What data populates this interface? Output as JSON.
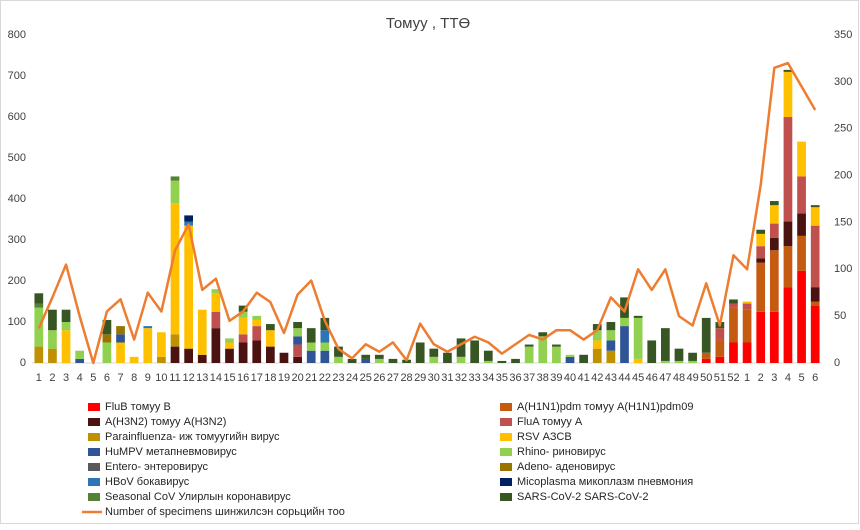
{
  "chart_data": {
    "type": "bar",
    "title": "Томуу , ТТӨ",
    "categories": [
      "1",
      "2",
      "3",
      "4",
      "5",
      "6",
      "7",
      "8",
      "9",
      "10",
      "11",
      "12",
      "13",
      "14",
      "15",
      "16",
      "17",
      "18",
      "19",
      "20",
      "21",
      "22",
      "23",
      "24",
      "25",
      "26",
      "27",
      "28",
      "29",
      "30",
      "31",
      "32",
      "33",
      "34",
      "35",
      "36",
      "37",
      "38",
      "39",
      "40",
      "41",
      "42",
      "43",
      "44",
      "45",
      "46",
      "47",
      "48",
      "49",
      "50",
      "51",
      "52",
      "1",
      "2",
      "3",
      "4",
      "5",
      "6"
    ],
    "ylim": [
      0,
      800
    ],
    "yticks": [
      0,
      100,
      200,
      300,
      400,
      500,
      600,
      700,
      800
    ],
    "y2lim": [
      0,
      350
    ],
    "y2ticks": [
      0,
      50,
      100,
      150,
      200,
      250,
      300,
      350
    ],
    "stacked": true,
    "legend": "bottom",
    "series": [
      {
        "name": "FluB томуу B",
        "color": "#ff0000",
        "values": [
          0,
          0,
          0,
          0,
          0,
          0,
          0,
          0,
          0,
          0,
          0,
          0,
          0,
          0,
          0,
          0,
          0,
          0,
          0,
          0,
          0,
          0,
          0,
          0,
          0,
          0,
          0,
          0,
          0,
          0,
          0,
          0,
          0,
          0,
          0,
          0,
          0,
          0,
          0,
          0,
          0,
          0,
          0,
          0,
          0,
          0,
          0,
          0,
          0,
          10,
          15,
          50,
          50,
          125,
          125,
          185,
          225,
          140
        ]
      },
      {
        "name": "A(H1N1)pdm томуу A(H1N1)pdm09",
        "color": "#c55a11",
        "values": [
          0,
          0,
          0,
          0,
          0,
          0,
          0,
          0,
          0,
          0,
          0,
          0,
          0,
          0,
          0,
          0,
          0,
          0,
          0,
          0,
          0,
          0,
          0,
          0,
          0,
          0,
          0,
          0,
          0,
          0,
          0,
          0,
          0,
          0,
          0,
          0,
          0,
          0,
          0,
          0,
          0,
          0,
          0,
          0,
          0,
          0,
          0,
          0,
          0,
          15,
          40,
          85,
          80,
          120,
          150,
          100,
          85,
          10
        ]
      },
      {
        "name": "A(H3N2) томуу A(H3N2)",
        "color": "#4b1212",
        "values": [
          0,
          0,
          0,
          0,
          0,
          0,
          0,
          0,
          0,
          0,
          40,
          35,
          20,
          85,
          35,
          50,
          55,
          40,
          25,
          15,
          0,
          0,
          0,
          0,
          0,
          0,
          0,
          0,
          0,
          0,
          0,
          0,
          0,
          0,
          0,
          0,
          0,
          0,
          0,
          0,
          0,
          0,
          0,
          0,
          0,
          0,
          0,
          0,
          0,
          0,
          0,
          0,
          0,
          10,
          30,
          60,
          55,
          35
        ]
      },
      {
        "name": "FluA томуу A",
        "color": "#c0504d",
        "values": [
          0,
          0,
          0,
          0,
          0,
          0,
          0,
          0,
          0,
          0,
          0,
          0,
          0,
          40,
          0,
          20,
          35,
          0,
          0,
          30,
          0,
          0,
          0,
          0,
          0,
          0,
          0,
          0,
          0,
          0,
          0,
          0,
          0,
          0,
          0,
          0,
          0,
          0,
          0,
          0,
          0,
          0,
          0,
          0,
          0,
          0,
          0,
          0,
          0,
          0,
          30,
          10,
          15,
          30,
          35,
          255,
          90,
          150
        ]
      },
      {
        "name": "Parainfluenza- иж томуугийн  вирус",
        "color": "#bf9000",
        "values": [
          40,
          35,
          0,
          0,
          0,
          0,
          0,
          0,
          0,
          15,
          30,
          0,
          0,
          0,
          0,
          0,
          0,
          0,
          0,
          0,
          0,
          0,
          0,
          0,
          0,
          0,
          0,
          0,
          0,
          0,
          0,
          0,
          0,
          0,
          0,
          0,
          0,
          0,
          0,
          0,
          0,
          35,
          30,
          0,
          0,
          0,
          0,
          0,
          0,
          0,
          0,
          0,
          0,
          0,
          0,
          0,
          0,
          0
        ]
      },
      {
        "name": "RSV АЗСВ",
        "color": "#ffc000",
        "values": [
          0,
          0,
          80,
          0,
          0,
          0,
          50,
          15,
          85,
          60,
          320,
          300,
          110,
          45,
          15,
          40,
          15,
          40,
          0,
          0,
          0,
          0,
          0,
          0,
          0,
          0,
          0,
          0,
          0,
          0,
          0,
          0,
          0,
          0,
          0,
          0,
          0,
          0,
          0,
          0,
          0,
          20,
          0,
          0,
          10,
          0,
          0,
          0,
          0,
          0,
          0,
          0,
          5,
          30,
          45,
          110,
          85,
          45
        ]
      },
      {
        "name": "HuMPV метапневмовирус",
        "color": "#2f5597",
        "values": [
          0,
          0,
          0,
          10,
          0,
          0,
          20,
          0,
          0,
          0,
          0,
          0,
          0,
          0,
          0,
          0,
          0,
          0,
          0,
          20,
          30,
          30,
          0,
          0,
          10,
          0,
          0,
          0,
          0,
          0,
          0,
          0,
          0,
          0,
          0,
          0,
          0,
          0,
          0,
          15,
          0,
          0,
          25,
          90,
          0,
          0,
          0,
          0,
          0,
          0,
          0,
          0,
          0,
          0,
          0,
          0,
          0,
          0
        ]
      },
      {
        "name": "Rhino- риновирус",
        "color": "#92d050",
        "values": [
          95,
          45,
          20,
          20,
          0,
          50,
          0,
          0,
          0,
          0,
          55,
          0,
          0,
          10,
          10,
          15,
          10,
          0,
          0,
          20,
          20,
          20,
          15,
          0,
          0,
          10,
          0,
          0,
          0,
          15,
          0,
          15,
          0,
          5,
          0,
          0,
          40,
          65,
          40,
          5,
          0,
          25,
          25,
          20,
          100,
          0,
          5,
          5,
          5,
          0,
          0,
          0,
          0,
          0,
          0,
          0,
          0,
          0
        ]
      },
      {
        "name": "Entero- энтеровирус",
        "color": "#595959",
        "values": [
          0,
          0,
          0,
          0,
          0,
          0,
          0,
          0,
          0,
          0,
          0,
          0,
          0,
          0,
          0,
          0,
          0,
          0,
          0,
          0,
          0,
          0,
          0,
          0,
          0,
          0,
          0,
          0,
          0,
          0,
          0,
          0,
          0,
          0,
          0,
          0,
          0,
          0,
          0,
          0,
          0,
          0,
          0,
          0,
          0,
          0,
          0,
          0,
          0,
          0,
          0,
          0,
          0,
          0,
          0,
          0,
          0,
          0
        ]
      },
      {
        "name": "Adeno- аденовирус",
        "color": "#997300",
        "values": [
          0,
          0,
          0,
          0,
          0,
          20,
          20,
          0,
          0,
          0,
          0,
          0,
          0,
          0,
          0,
          0,
          0,
          0,
          0,
          0,
          0,
          0,
          0,
          0,
          0,
          0,
          0,
          0,
          0,
          0,
          0,
          0,
          0,
          0,
          0,
          0,
          0,
          0,
          0,
          0,
          0,
          0,
          0,
          0,
          0,
          0,
          0,
          0,
          0,
          0,
          0,
          0,
          0,
          0,
          0,
          0,
          0,
          0
        ]
      },
      {
        "name": "HBoV бокавирус",
        "color": "#2e75b6",
        "values": [
          0,
          0,
          0,
          0,
          0,
          0,
          0,
          0,
          5,
          0,
          0,
          10,
          0,
          0,
          0,
          0,
          0,
          0,
          0,
          0,
          0,
          30,
          0,
          0,
          0,
          0,
          0,
          0,
          0,
          0,
          0,
          0,
          0,
          0,
          0,
          0,
          0,
          0,
          0,
          0,
          0,
          0,
          0,
          0,
          0,
          0,
          0,
          0,
          0,
          0,
          0,
          0,
          0,
          0,
          0,
          0,
          0,
          0
        ]
      },
      {
        "name": "Micoplasma микоплазм пневмония",
        "color": "#002060",
        "values": [
          0,
          0,
          0,
          0,
          0,
          0,
          0,
          0,
          0,
          0,
          0,
          15,
          0,
          0,
          0,
          0,
          0,
          0,
          0,
          0,
          0,
          0,
          0,
          0,
          0,
          0,
          0,
          0,
          0,
          0,
          0,
          0,
          0,
          0,
          0,
          0,
          0,
          0,
          0,
          0,
          0,
          0,
          0,
          0,
          0,
          0,
          0,
          0,
          0,
          0,
          0,
          0,
          0,
          0,
          0,
          0,
          0,
          0
        ]
      },
      {
        "name": "Seasonal CoV Улирлын коронавирус",
        "color": "#548235",
        "values": [
          10,
          0,
          0,
          0,
          0,
          0,
          0,
          0,
          0,
          0,
          10,
          0,
          0,
          0,
          0,
          0,
          0,
          0,
          0,
          0,
          0,
          0,
          0,
          0,
          0,
          0,
          0,
          0,
          0,
          0,
          0,
          0,
          0,
          0,
          0,
          0,
          0,
          0,
          0,
          0,
          0,
          0,
          0,
          0,
          0,
          0,
          0,
          0,
          0,
          0,
          0,
          0,
          0,
          0,
          0,
          0,
          0,
          0
        ]
      },
      {
        "name": "SARS-CoV-2 SARS-CoV-2",
        "color": "#375623",
        "values": [
          25,
          50,
          30,
          0,
          0,
          35,
          0,
          0,
          0,
          0,
          0,
          0,
          0,
          0,
          0,
          15,
          0,
          15,
          0,
          15,
          35,
          30,
          25,
          10,
          10,
          10,
          10,
          8,
          50,
          20,
          25,
          45,
          55,
          25,
          5,
          10,
          5,
          10,
          5,
          0,
          20,
          15,
          20,
          50,
          5,
          55,
          80,
          30,
          20,
          85,
          15,
          10,
          0,
          10,
          10,
          5,
          0,
          5
        ]
      },
      {
        "name": "Number of specimens шинжилсэн сорьцийн тоо",
        "color": "#ed7d31",
        "type": "line",
        "axis": "y2",
        "values": [
          37,
          70,
          105,
          50,
          0,
          55,
          68,
          25,
          75,
          55,
          120,
          148,
          78,
          90,
          45,
          55,
          75,
          65,
          32,
          73,
          88,
          45,
          15,
          5,
          20,
          12,
          22,
          3,
          42,
          20,
          12,
          20,
          28,
          22,
          10,
          20,
          30,
          25,
          35,
          35,
          25,
          35,
          70,
          55,
          100,
          78,
          100,
          50,
          40,
          85,
          40,
          115,
          100,
          190,
          315,
          320,
          295,
          270
        ]
      }
    ]
  }
}
